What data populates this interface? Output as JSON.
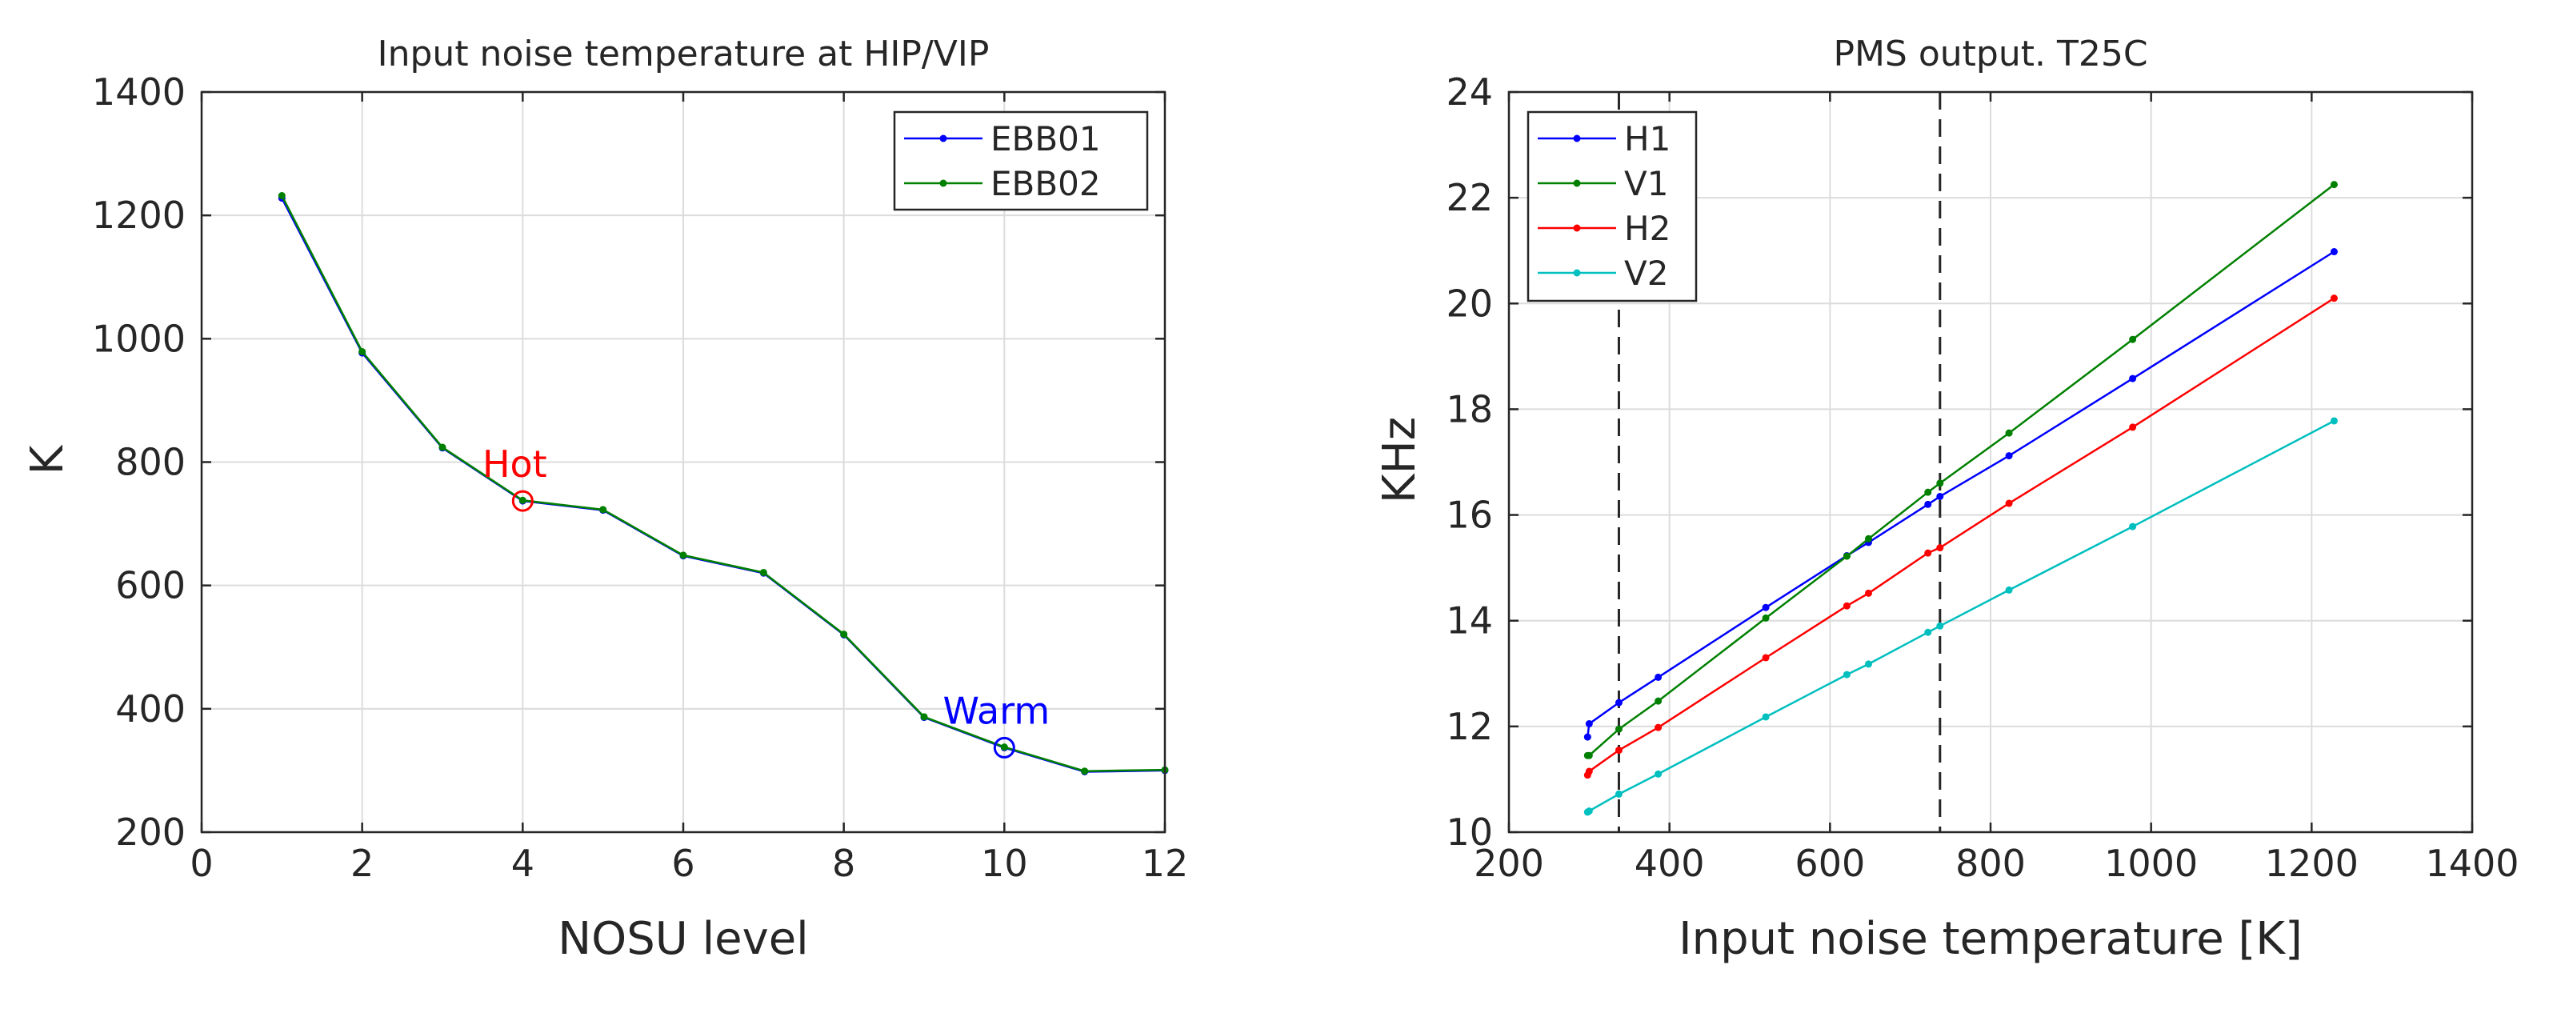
{
  "chart_data": [
    {
      "type": "line",
      "title": "Input noise temperature at HIP/VIP",
      "xlabel": "NOSU level",
      "ylabel": "K",
      "xlim": [
        0,
        12
      ],
      "ylim": [
        200,
        1400
      ],
      "xticks": [
        0,
        2,
        4,
        6,
        8,
        10,
        12
      ],
      "yticks": [
        200,
        400,
        600,
        800,
        1000,
        1200,
        1400
      ],
      "grid": true,
      "legend": "top-right",
      "series": [
        {
          "name": "EBB01",
          "color": "#0000ff",
          "x": [
            1,
            2,
            3,
            4,
            5,
            6,
            7,
            8,
            9,
            10,
            11,
            12
          ],
          "y": [
            1228,
            977,
            823,
            737,
            722,
            648,
            620,
            520,
            386,
            337,
            298,
            300
          ]
        },
        {
          "name": "EBB02",
          "color": "#008000",
          "x": [
            1,
            2,
            3,
            4,
            5,
            6,
            7,
            8,
            9,
            10,
            11,
            12
          ],
          "y": [
            1232,
            979,
            824,
            738,
            723,
            649,
            621,
            521,
            387,
            338,
            299,
            301
          ]
        }
      ],
      "annotations": [
        {
          "text": "Hot",
          "x": 4,
          "y": 737,
          "color": "#ff0000"
        },
        {
          "text": "Warm",
          "x": 10,
          "y": 337,
          "color": "#0000ff"
        }
      ]
    },
    {
      "type": "line",
      "title": "PMS output. T25C",
      "xlabel": "Input noise temperature [K]",
      "ylabel": "KHz",
      "xlim": [
        200,
        1400
      ],
      "ylim": [
        10,
        24
      ],
      "xticks": [
        200,
        400,
        600,
        800,
        1000,
        1200,
        1400
      ],
      "yticks": [
        10,
        12,
        14,
        16,
        18,
        20,
        22,
        24
      ],
      "grid": true,
      "legend": "top-left",
      "vlines": [
        337,
        737
      ],
      "series": [
        {
          "name": "H1",
          "color": "#0000ff",
          "x": [
            298,
            300,
            337,
            386,
            520,
            621,
            648,
            722,
            737,
            823,
            977,
            1228
          ],
          "y": [
            11.8,
            12.05,
            12.45,
            12.93,
            14.25,
            15.23,
            15.48,
            16.2,
            16.35,
            17.12,
            18.58,
            20.98
          ]
        },
        {
          "name": "V1",
          "color": "#008000",
          "x": [
            298,
            300,
            337,
            386,
            520,
            621,
            648,
            722,
            737,
            823,
            977,
            1228
          ],
          "y": [
            11.45,
            11.45,
            11.95,
            12.48,
            14.05,
            15.22,
            15.55,
            16.43,
            16.6,
            17.55,
            19.32,
            22.25
          ]
        },
        {
          "name": "H2",
          "color": "#ff0000",
          "x": [
            298,
            300,
            337,
            386,
            520,
            621,
            648,
            722,
            737,
            823,
            977,
            1228
          ],
          "y": [
            11.08,
            11.15,
            11.55,
            11.98,
            13.3,
            14.28,
            14.52,
            15.28,
            15.38,
            16.22,
            17.66,
            20.1
          ]
        },
        {
          "name": "V2",
          "color": "#00bfbf",
          "x": [
            298,
            300,
            337,
            386,
            520,
            621,
            648,
            722,
            737,
            823,
            977,
            1228
          ],
          "y": [
            10.38,
            10.4,
            10.72,
            11.1,
            12.18,
            12.98,
            13.18,
            13.78,
            13.9,
            14.58,
            15.78,
            17.78
          ]
        }
      ]
    }
  ]
}
